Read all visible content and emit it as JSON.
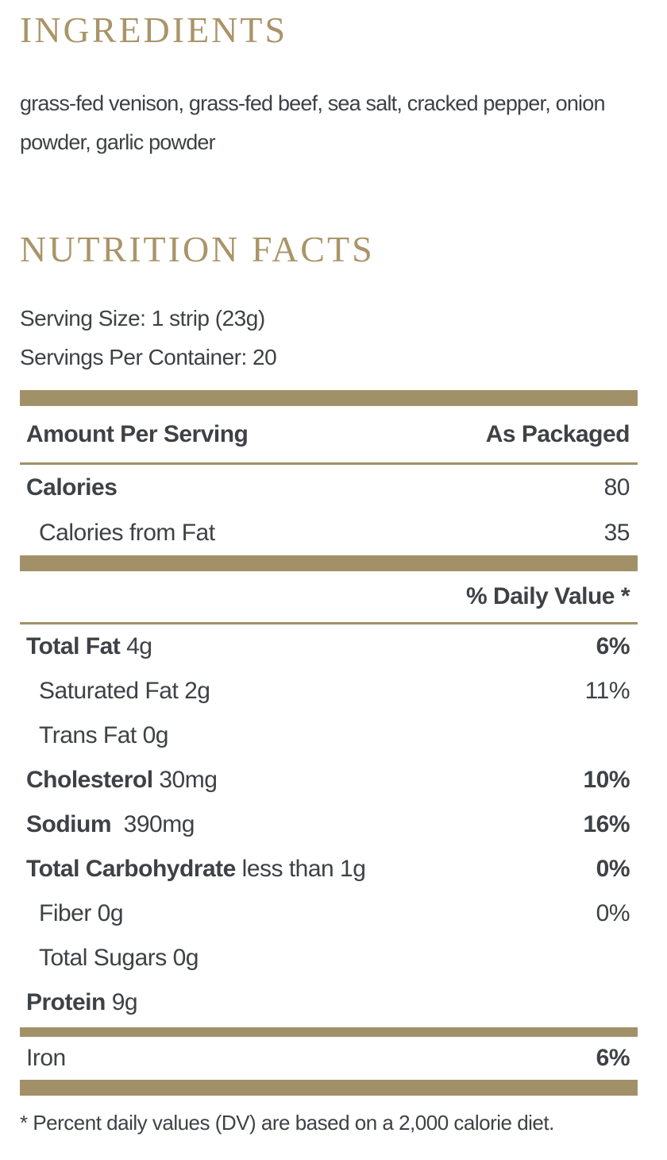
{
  "colors": {
    "accent_gold": "#a29168",
    "heading_gold": "#aa9468",
    "text_dark": "#3e4145",
    "background": "#ffffff"
  },
  "ingredients": {
    "heading": "INGREDIENTS",
    "text": "grass-fed venison, grass-fed beef, sea salt, cracked pepper, onion powder, garlic powder"
  },
  "nutrition": {
    "heading": "NUTRITION FACTS",
    "serving_size": "Serving Size: 1 strip (23g)",
    "servings_per_container": "Servings Per Container: 20",
    "columns": {
      "left": "Amount Per Serving",
      "right": "As Packaged"
    },
    "calorie_rows": [
      {
        "bold": "Calories",
        "rest": "",
        "value": "80"
      },
      {
        "bold": "",
        "rest": "Calories from Fat",
        "value": "35"
      }
    ],
    "daily_value_header": "% Daily Value *",
    "main_rows": [
      {
        "bold": "Total Fat",
        "rest": " 4g",
        "value": "6%"
      },
      {
        "bold": "",
        "rest": "Saturated Fat 2g",
        "value": "11%"
      },
      {
        "bold": "",
        "rest": "Trans Fat 0g",
        "value": ""
      },
      {
        "bold": "Cholesterol",
        "rest": " 30mg",
        "value": "10%"
      },
      {
        "bold": "Sodium",
        "rest": "  390mg",
        "value": "16%"
      },
      {
        "bold": "Total Carbohydrate",
        "rest": " less than 1g",
        "value": "0%"
      },
      {
        "bold": "",
        "rest": "Fiber 0g",
        "value": "0%"
      },
      {
        "bold": "",
        "rest": "Total Sugars 0g",
        "value": ""
      },
      {
        "bold": "Protein",
        "rest": " 9g",
        "value": ""
      }
    ],
    "minerals": [
      {
        "label": "Iron",
        "value": "6%"
      }
    ],
    "footnote": "* Percent daily values (DV) are based on a 2,000 calorie diet."
  }
}
